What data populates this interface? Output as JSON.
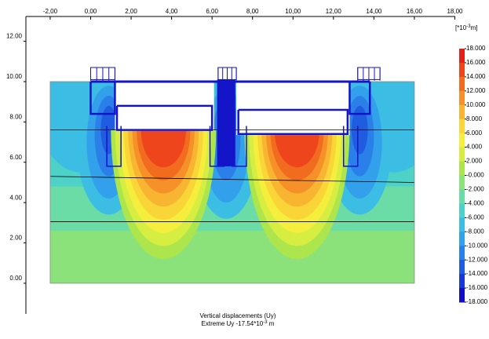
{
  "chart_data": {
    "type": "contour",
    "title": "Vertical displacements (Uy)",
    "subtitle_parts": [
      "Extreme Uy -17.54*10",
      "-3",
      " m"
    ],
    "xlim": [
      -3.2,
      18.02
    ],
    "ylim": [
      -1.52,
      13.23
    ],
    "xticks": [
      {
        "value": -2,
        "label": "-2,00"
      },
      {
        "value": 0,
        "label": "0,00"
      },
      {
        "value": 2,
        "label": "2,00"
      },
      {
        "value": 4,
        "label": "4,00"
      },
      {
        "value": 6,
        "label": "6,00"
      },
      {
        "value": 8,
        "label": "8,00"
      },
      {
        "value": 10,
        "label": "10,00"
      },
      {
        "value": 12,
        "label": "12,00"
      },
      {
        "value": 14,
        "label": "14,00"
      },
      {
        "value": 16,
        "label": "16,00"
      },
      {
        "value": 18,
        "label": "18,00"
      }
    ],
    "yticks": [
      {
        "value": 0,
        "label": "0.00"
      },
      {
        "value": 2,
        "label": "2.00"
      },
      {
        "value": 4,
        "label": "4.00"
      },
      {
        "value": 6,
        "label": "6.00"
      },
      {
        "value": 8,
        "label": "8.00"
      },
      {
        "value": 10,
        "label": "10.00"
      },
      {
        "value": 12,
        "label": "12.00"
      }
    ],
    "colorbar": {
      "unit_parts": [
        "[*10",
        "-3",
        "m]"
      ],
      "ticks": [
        {
          "value": 18,
          "label": "18.000"
        },
        {
          "value": 16,
          "label": "16.000"
        },
        {
          "value": 14,
          "label": "14.000"
        },
        {
          "value": 12,
          "label": "12.000"
        },
        {
          "value": 10,
          "label": "10.000"
        },
        {
          "value": 8,
          "label": "8.000"
        },
        {
          "value": 6,
          "label": "6.000"
        },
        {
          "value": 4,
          "label": "4.000"
        },
        {
          "value": 2,
          "label": "2.000"
        },
        {
          "value": 0,
          "label": "-0.000"
        },
        {
          "value": -2,
          "label": "-2.000"
        },
        {
          "value": -4,
          "label": "-4.000"
        },
        {
          "value": -6,
          "label": "-6.000"
        },
        {
          "value": -8,
          "label": "-8.000"
        },
        {
          "value": -10,
          "label": "-10.000"
        },
        {
          "value": -12,
          "label": "-12.000"
        },
        {
          "value": -14,
          "label": "-14.000"
        },
        {
          "value": -16,
          "label": "-16.000"
        },
        {
          "value": -18,
          "label": "-18.000"
        }
      ],
      "colors": [
        "#e4201a",
        "#ee451c",
        "#f26c1f",
        "#f59128",
        "#f8b531",
        "#fad538",
        "#f6ee3c",
        "#d6ee42",
        "#ade64c",
        "#8ce27a",
        "#6cdca6",
        "#4ed2c8",
        "#3cbee4",
        "#32a0ea",
        "#2a80e8",
        "#205ce0",
        "#1838d6",
        "#120cc6"
      ]
    }
  }
}
